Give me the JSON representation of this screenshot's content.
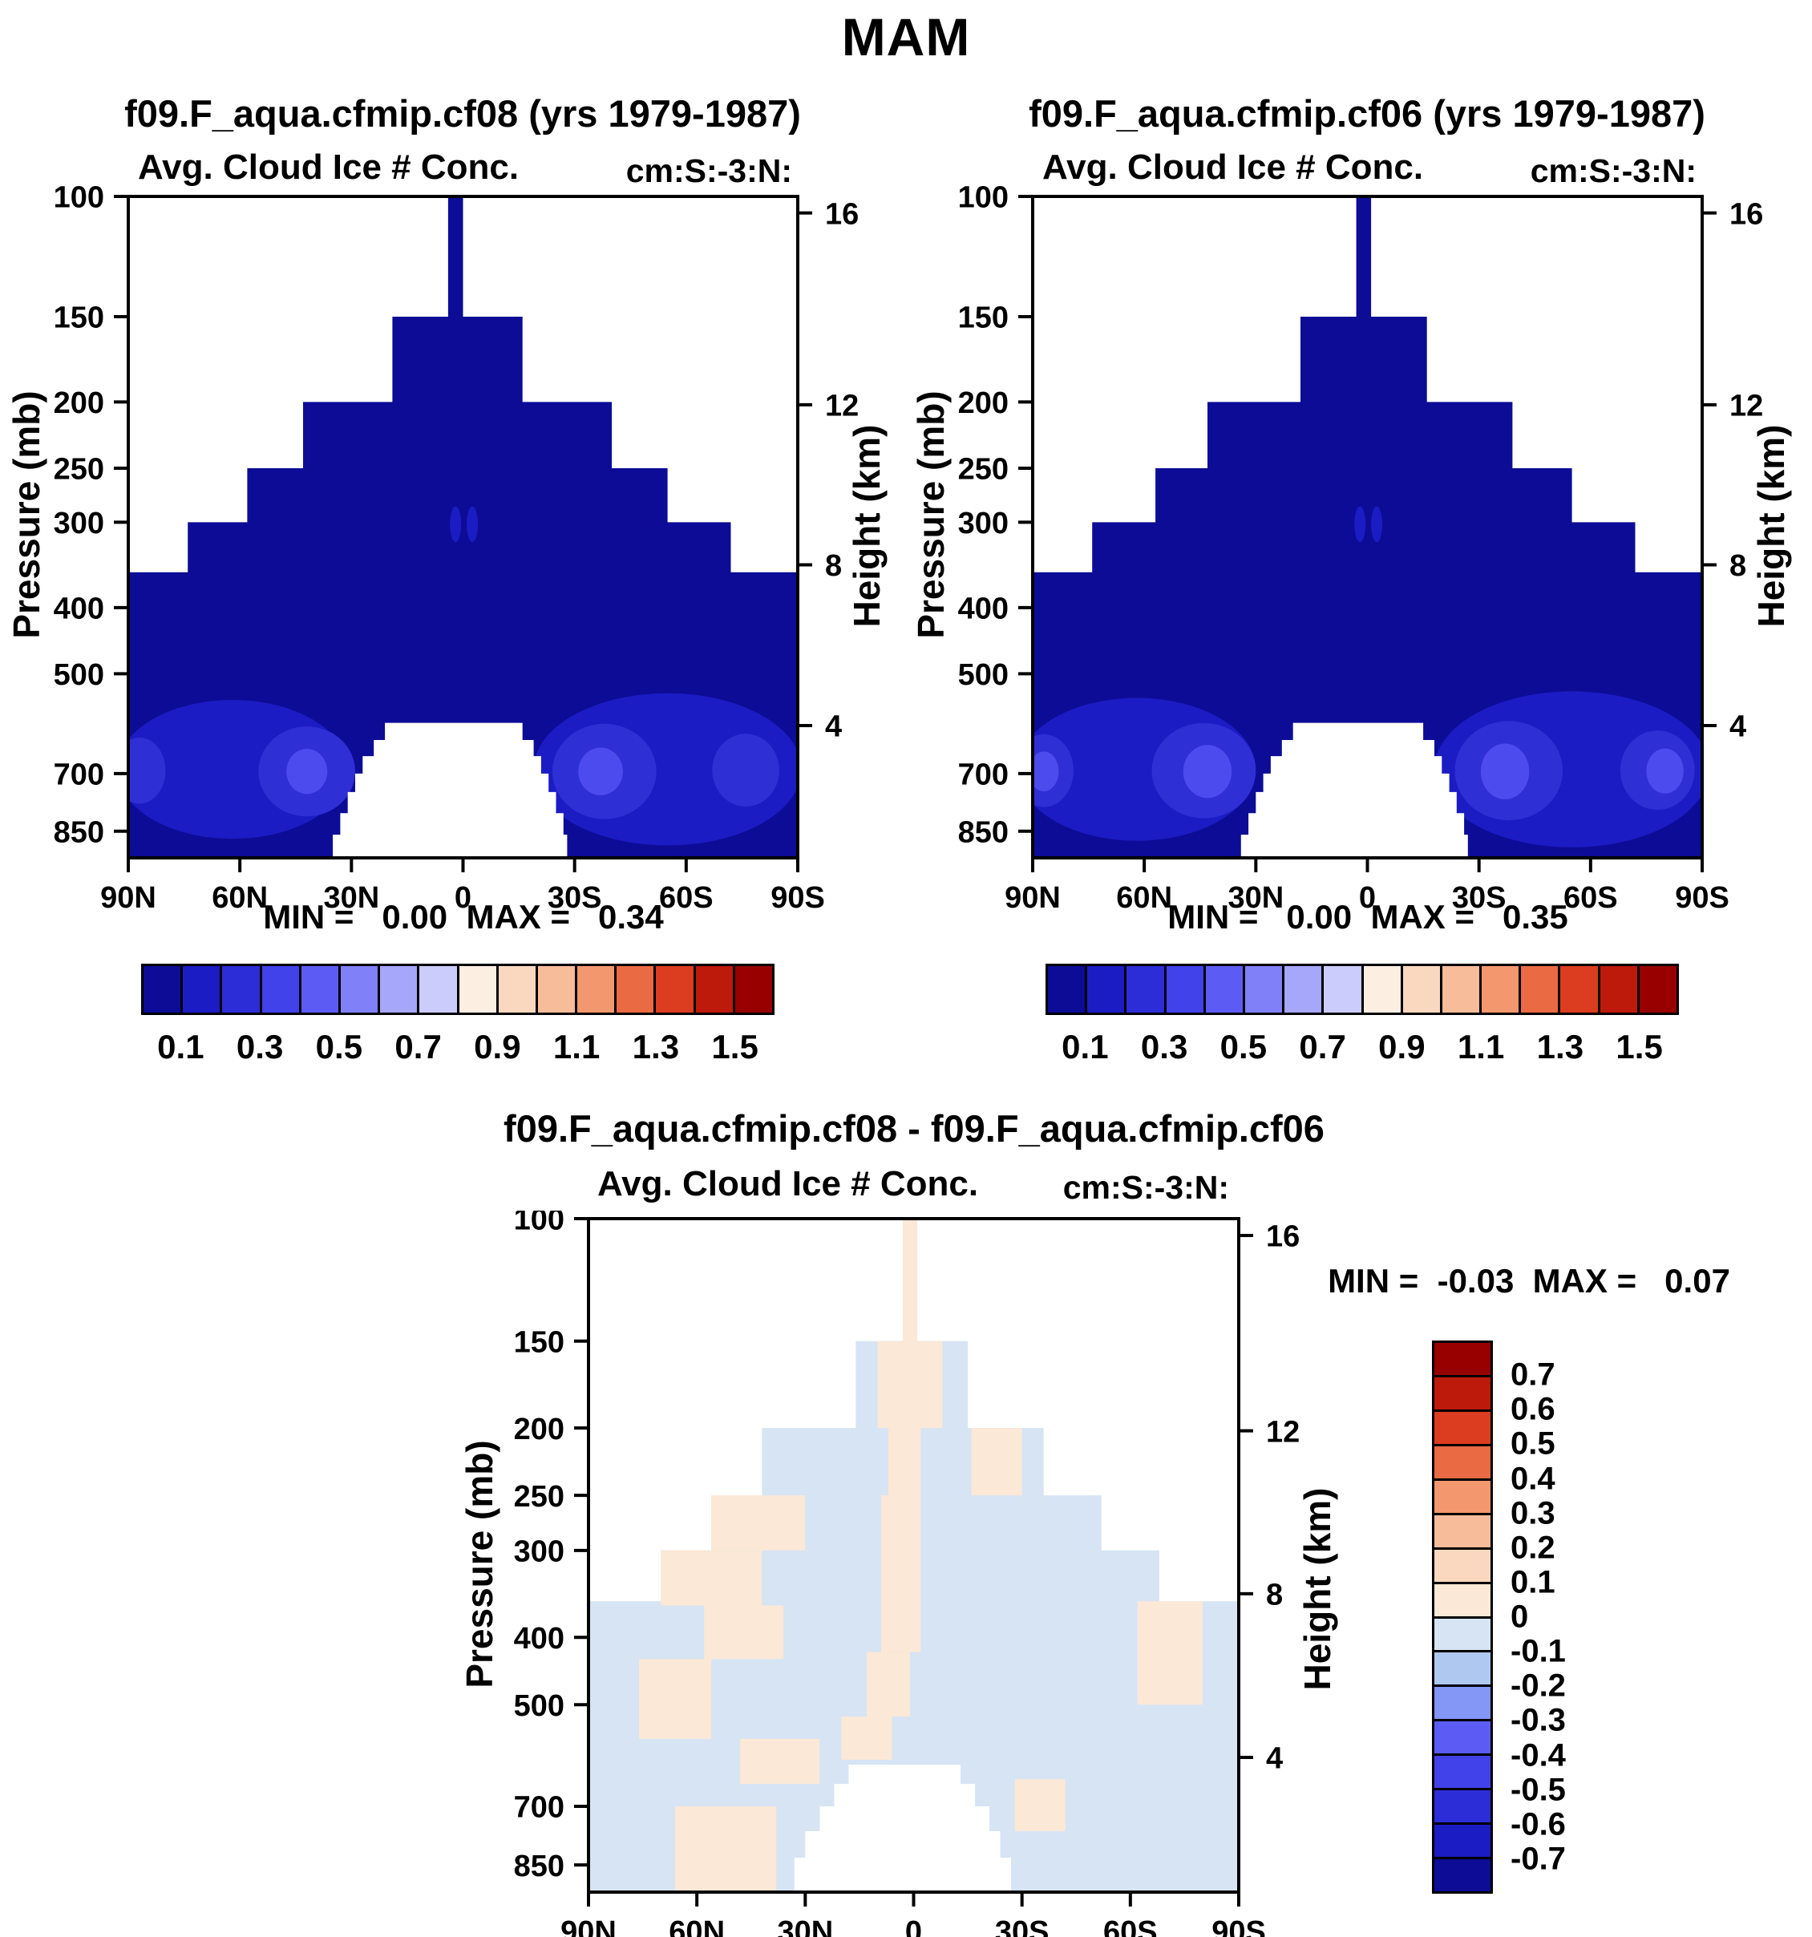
{
  "page": {
    "title": "MAM"
  },
  "palette": {
    "navy": "#0C0C96",
    "b2": "#1C1CC4",
    "b3": "#2F2FD6",
    "b4": "#4C4CEE",
    "pale_blue": "#D6E4F4",
    "pale_orange": "#FBE8D6"
  },
  "axes": {
    "pressure_label": "Pressure (mb)",
    "height_label": "Height (km)",
    "pressure_ticks": [
      100,
      150,
      200,
      250,
      300,
      400,
      500,
      700,
      850
    ],
    "height_ticks": [
      "16",
      "12",
      "8",
      "4"
    ],
    "km_fracs": [
      0.025,
      0.315,
      0.557,
      0.8
    ],
    "lat_ticks": [
      "90N",
      "60N",
      "30N",
      "0",
      "30S",
      "60S",
      "90S"
    ]
  },
  "colorbar": {
    "labels": [
      "0.1",
      "0.3",
      "0.5",
      "0.7",
      "0.9",
      "1.1",
      "1.3",
      "1.5"
    ],
    "colors": [
      "#0C0C96",
      "#1C1CC4",
      "#2D2DD8",
      "#4242EA",
      "#5C5CF4",
      "#8080F8",
      "#A6A6FA",
      "#CCCCFC",
      "#FDEEE2",
      "#FAD8C0",
      "#F7BC9A",
      "#F2976E",
      "#EA6A44",
      "#DC3C20",
      "#BE1A0C",
      "#980000"
    ]
  },
  "diff_colorbar": {
    "labels": [
      "0.7",
      "0.6",
      "0.5",
      "0.4",
      "0.3",
      "0.2",
      "0.1",
      "0",
      "-0.1",
      "-0.2",
      "-0.3",
      "-0.4",
      "-0.5",
      "-0.6",
      "-0.7"
    ],
    "colors": [
      "#980000",
      "#BE1A0C",
      "#DC3C20",
      "#EA6A44",
      "#F2976E",
      "#F7BC9A",
      "#FAD8C0",
      "#FBE8D6",
      "#D6E4F4",
      "#AFC8F0",
      "#8496F6",
      "#5C5CF4",
      "#4242EA",
      "#2D2DD8",
      "#1C1CC4",
      "#0C0C96"
    ]
  },
  "chart_data": [
    {
      "type": "contour",
      "title": "f09.F_aqua.cfmip.cf08 (yrs 1979-1987)",
      "subtitle": "Avg. Cloud Ice # Conc.",
      "units_string": "cm:S:-3:N:",
      "min": 0.0,
      "max": 0.34,
      "min_max_text": "MIN =   0.00  MAX =   0.34",
      "levels": [
        0.1,
        0.2,
        0.3,
        0.4,
        0.5,
        0.6,
        0.7,
        0.8,
        0.9,
        1.0,
        1.1,
        1.2,
        1.3,
        1.4,
        1.5
      ],
      "xlabel_ticks": [
        "90N",
        "60N",
        "30N",
        "0",
        "30S",
        "60S",
        "90S"
      ],
      "y_range_mb": [
        100,
        930
      ],
      "base_color": "navy",
      "region_steps": [
        [
          100,
          150,
          4,
          0
        ],
        [
          150,
          200,
          19,
          -16
        ],
        [
          200,
          250,
          43,
          -40
        ],
        [
          250,
          300,
          58,
          -55
        ],
        [
          300,
          355,
          74,
          -72
        ],
        [
          355,
          930,
          90,
          -90
        ]
      ],
      "hole_steps": [
        [
          590,
          625,
          21,
          -16
        ],
        [
          625,
          660,
          24,
          -19
        ],
        [
          660,
          700,
          27,
          -21
        ],
        [
          700,
          745,
          29,
          -23
        ],
        [
          745,
          800,
          31,
          -25
        ],
        [
          800,
          860,
          33,
          -27
        ],
        [
          860,
          930,
          35,
          -28
        ]
      ],
      "blobs": [
        [
          62,
          690,
          31,
          0.105,
          "b2"
        ],
        [
          -55,
          690,
          36,
          0.115,
          "b2"
        ],
        [
          42,
          695,
          13,
          0.068,
          "b3"
        ],
        [
          87,
          693,
          7,
          0.05,
          "b3"
        ],
        [
          -38,
          695,
          14,
          0.072,
          "b3"
        ],
        [
          -76,
          692,
          9,
          0.055,
          "b3"
        ],
        [
          42,
          695,
          5.5,
          0.034,
          "b4"
        ],
        [
          -37,
          695,
          6,
          0.036,
          "b4"
        ],
        [
          2,
          302,
          1.5,
          0.027,
          "b2"
        ],
        [
          -2.5,
          302,
          1.5,
          0.027,
          "b2"
        ]
      ]
    },
    {
      "type": "contour",
      "title": "f09.F_aqua.cfmip.cf06 (yrs 1979-1987)",
      "subtitle": "Avg. Cloud Ice # Conc.",
      "units_string": "cm:S:-3:N:",
      "min": 0.0,
      "max": 0.35,
      "min_max_text": "MIN =   0.00  MAX =   0.35",
      "levels": [
        0.1,
        0.2,
        0.3,
        0.4,
        0.5,
        0.6,
        0.7,
        0.8,
        0.9,
        1.0,
        1.1,
        1.2,
        1.3,
        1.4,
        1.5
      ],
      "xlabel_ticks": [
        "90N",
        "60N",
        "30N",
        "0",
        "30S",
        "60S",
        "90S"
      ],
      "y_range_mb": [
        100,
        930
      ],
      "base_color": "navy",
      "region_steps": [
        [
          100,
          150,
          3,
          -1
        ],
        [
          150,
          200,
          18,
          -16
        ],
        [
          200,
          250,
          43,
          -39
        ],
        [
          250,
          300,
          57,
          -55
        ],
        [
          300,
          355,
          74,
          -72
        ],
        [
          355,
          930,
          90,
          -90
        ]
      ],
      "hole_steps": [
        [
          590,
          625,
          20,
          -15
        ],
        [
          625,
          660,
          23,
          -18
        ],
        [
          660,
          700,
          26,
          -20
        ],
        [
          700,
          745,
          28,
          -22
        ],
        [
          745,
          800,
          30,
          -24
        ],
        [
          800,
          860,
          32,
          -26
        ],
        [
          860,
          930,
          34,
          -27
        ]
      ],
      "blobs": [
        [
          62,
          690,
          32,
          0.108,
          "b2"
        ],
        [
          -55,
          690,
          37,
          0.118,
          "b2"
        ],
        [
          44,
          693,
          14,
          0.072,
          "b3"
        ],
        [
          87,
          693,
          8,
          0.055,
          "b3"
        ],
        [
          -38,
          693,
          14.5,
          0.075,
          "b3"
        ],
        [
          -78,
          692,
          10,
          0.06,
          "b3"
        ],
        [
          43,
          695,
          6.5,
          0.04,
          "b4"
        ],
        [
          -37,
          695,
          6.5,
          0.042,
          "b4"
        ],
        [
          -80,
          694,
          5,
          0.034,
          "b4"
        ],
        [
          87,
          695,
          4,
          0.03,
          "b4"
        ],
        [
          2,
          302,
          1.5,
          0.027,
          "b2"
        ],
        [
          -2.5,
          302,
          1.5,
          0.027,
          "b2"
        ]
      ]
    },
    {
      "type": "contour-difference",
      "title": "f09.F_aqua.cfmip.cf08 - f09.F_aqua.cfmip.cf06",
      "subtitle": "Avg. Cloud Ice # Conc.",
      "units_string": "cm:S:-3:N:",
      "min": -0.03,
      "max": 0.07,
      "min_max_text": "MIN =  -0.03  MAX =   0.07",
      "levels": [
        -0.7,
        -0.6,
        -0.5,
        -0.4,
        -0.3,
        -0.2,
        -0.1,
        0,
        0.1,
        0.2,
        0.3,
        0.4,
        0.5,
        0.6,
        0.7
      ],
      "xlabel_ticks": [
        "90N",
        "60N",
        "30N",
        "0",
        "30S",
        "60S",
        "90S"
      ],
      "y_range_mb": [
        100,
        930
      ],
      "base_color": "pale_blue",
      "patch_color": "pale_orange",
      "region_steps": [
        [
          100,
          150,
          3,
          -1
        ],
        [
          150,
          200,
          16,
          -15
        ],
        [
          200,
          250,
          42,
          -36
        ],
        [
          250,
          300,
          56,
          -52
        ],
        [
          300,
          355,
          70,
          -68
        ],
        [
          355,
          930,
          90,
          -90
        ]
      ],
      "hole_steps": [
        [
          610,
          650,
          18,
          -13
        ],
        [
          650,
          700,
          22,
          -17
        ],
        [
          700,
          760,
          26,
          -21
        ],
        [
          760,
          830,
          30,
          -24
        ],
        [
          830,
          930,
          33,
          -27
        ]
      ],
      "patches": [
        [
          100,
          150,
          3,
          -1
        ],
        [
          150,
          200,
          10,
          -8
        ],
        [
          200,
          250,
          7,
          -2
        ],
        [
          200,
          250,
          -16,
          -30
        ],
        [
          250,
          300,
          56,
          30
        ],
        [
          250,
          420,
          9,
          -2
        ],
        [
          300,
          360,
          70,
          42
        ],
        [
          360,
          430,
          58,
          36
        ],
        [
          420,
          520,
          13,
          1
        ],
        [
          430,
          560,
          76,
          56
        ],
        [
          520,
          600,
          20,
          6
        ],
        [
          355,
          500,
          -62,
          -80
        ],
        [
          560,
          650,
          48,
          26
        ],
        [
          700,
          930,
          66,
          38
        ],
        [
          640,
          760,
          -28,
          -42
        ]
      ]
    }
  ]
}
